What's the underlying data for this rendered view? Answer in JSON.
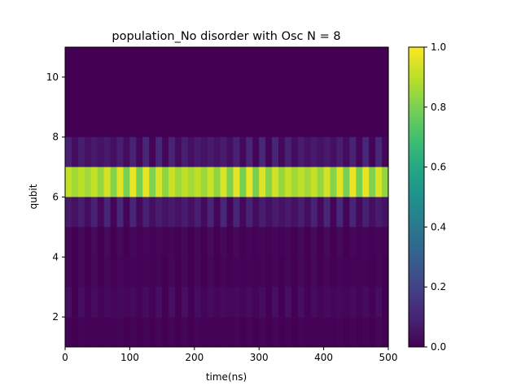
{
  "chart_data": {
    "type": "heatmap",
    "title": "population_No disorder with Osc N = 8",
    "xlabel": "time(ns)",
    "ylabel": "qubit",
    "xlim": [
      0,
      500
    ],
    "ylim": [
      1,
      11
    ],
    "x_ticks": [
      0,
      100,
      200,
      300,
      400,
      500
    ],
    "y_ticks": [
      2,
      4,
      6,
      8,
      10
    ],
    "colormap": "viridis",
    "colorbar": {
      "range": [
        0.0,
        1.0
      ],
      "ticks": [
        "0.0",
        "0.2",
        "0.4",
        "0.6",
        "0.8",
        "1.0"
      ]
    },
    "rows": [
      {
        "qubit_range": [
          10,
          11
        ],
        "base": 0.0,
        "osc": 0.0
      },
      {
        "qubit_range": [
          9,
          10
        ],
        "base": 0.0,
        "osc": 0.0
      },
      {
        "qubit_range": [
          8,
          9
        ],
        "base": 0.0,
        "osc": 0.0
      },
      {
        "qubit_range": [
          7,
          8
        ],
        "base": 0.06,
        "osc": 0.05
      },
      {
        "qubit_range": [
          6,
          7
        ],
        "base": 0.88,
        "osc": 0.09
      },
      {
        "qubit_range": [
          5,
          6
        ],
        "base": 0.06,
        "osc": 0.05
      },
      {
        "qubit_range": [
          4,
          5
        ],
        "base": 0.01,
        "osc": 0.015
      },
      {
        "qubit_range": [
          3,
          4
        ],
        "base": 0.008,
        "osc": 0.012
      },
      {
        "qubit_range": [
          2,
          3
        ],
        "base": 0.02,
        "osc": 0.02
      },
      {
        "qubit_range": [
          1,
          2
        ],
        "base": 0.005,
        "osc": 0.008
      }
    ],
    "time_steps": 50
  }
}
